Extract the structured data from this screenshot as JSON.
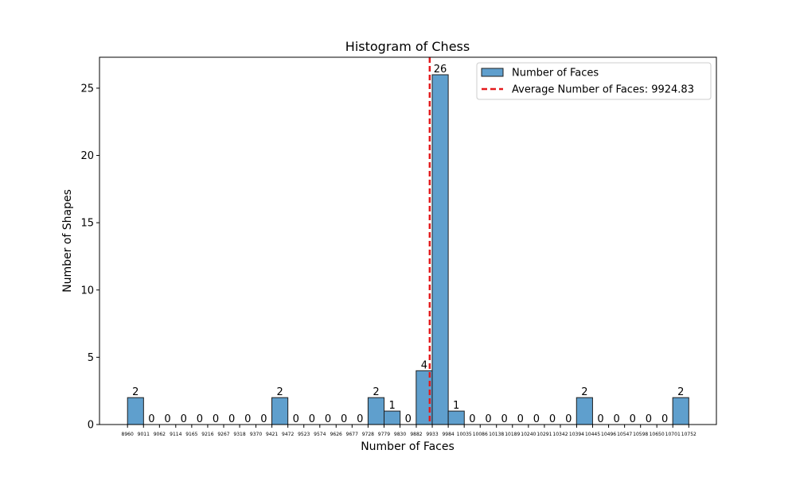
{
  "chart_data": {
    "type": "bar",
    "title": "Histogram of Chess",
    "xlabel": "Number of Faces",
    "ylabel": "Number of Shapes",
    "ylim": [
      0,
      27.3
    ],
    "yticks": [
      0,
      5,
      10,
      15,
      20,
      25
    ],
    "bin_edges": [
      8960,
      9011,
      9062,
      9114,
      9165,
      9216,
      9267,
      9318,
      9370,
      9421,
      9472,
      9523,
      9574,
      9626,
      9677,
      9728,
      9779,
      9830,
      9882,
      9933,
      9984,
      10035,
      10086,
      10138,
      10189,
      10240,
      10291,
      10342,
      10394,
      10445,
      10496,
      10547,
      10598,
      10650,
      10701,
      10752
    ],
    "values": [
      2,
      0,
      0,
      0,
      0,
      0,
      0,
      0,
      0,
      2,
      0,
      0,
      0,
      0,
      0,
      2,
      1,
      0,
      4,
      26,
      1,
      0,
      0,
      0,
      0,
      0,
      0,
      0,
      2,
      0,
      0,
      0,
      0,
      0,
      2
    ],
    "average": 9924.83,
    "bar_color": "#5f9fcd",
    "bar_edge_color": "#1f1f1f",
    "average_line_color": "#e41a1c",
    "grid": false,
    "legend_position": "top-right",
    "legend": [
      {
        "label": "Number of Faces",
        "kind": "bar"
      },
      {
        "label": "Average Number of Faces: 9924.83",
        "kind": "dashed-line"
      }
    ]
  }
}
